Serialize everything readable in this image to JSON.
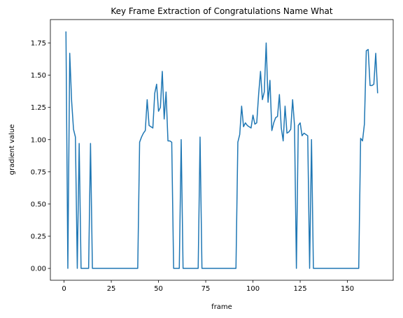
{
  "chart_data": {
    "type": "line",
    "title": "Key Frame Extraction of Congratulations Name What",
    "xlabel": "frame",
    "ylabel": "gradient value",
    "x": [
      1,
      2,
      3,
      4,
      5,
      6,
      7,
      8,
      9,
      10,
      11,
      12,
      13,
      14,
      15,
      16,
      17,
      18,
      19,
      20,
      21,
      22,
      23,
      24,
      25,
      26,
      27,
      28,
      29,
      30,
      31,
      32,
      33,
      34,
      35,
      36,
      37,
      38,
      39,
      40,
      41,
      42,
      43,
      44,
      45,
      46,
      47,
      48,
      49,
      50,
      51,
      52,
      53,
      54,
      55,
      56,
      57,
      58,
      59,
      60,
      61,
      62,
      63,
      64,
      65,
      66,
      67,
      68,
      69,
      70,
      71,
      72,
      73,
      74,
      75,
      76,
      77,
      78,
      79,
      80,
      81,
      82,
      83,
      84,
      85,
      86,
      87,
      88,
      89,
      90,
      91,
      92,
      93,
      94,
      95,
      96,
      97,
      98,
      99,
      100,
      101,
      102,
      103,
      104,
      105,
      106,
      107,
      108,
      109,
      110,
      111,
      112,
      113,
      114,
      115,
      116,
      117,
      118,
      119,
      120,
      121,
      122,
      123,
      124,
      125,
      126,
      127,
      128,
      129,
      130,
      131,
      132,
      133,
      134,
      135,
      136,
      137,
      138,
      139,
      140,
      141,
      142,
      143,
      144,
      145,
      146,
      147,
      148,
      149,
      150,
      151,
      152,
      153,
      154,
      155,
      156,
      157,
      158,
      159,
      160,
      161,
      162,
      163,
      164,
      165,
      166
    ],
    "series": [
      {
        "name": "gradient value",
        "color": "#1f77b4",
        "values": [
          1.84,
          0,
          1.67,
          1.3,
          1.08,
          1.02,
          0,
          0.97,
          0,
          0,
          0,
          0,
          0,
          0.97,
          0,
          0,
          0,
          0,
          0,
          0,
          0,
          0,
          0,
          0,
          0,
          0,
          0,
          0,
          0,
          0,
          0,
          0,
          0,
          0,
          0,
          0,
          0,
          0,
          0,
          0.98,
          1.02,
          1.05,
          1.07,
          1.31,
          1.11,
          1.1,
          1.09,
          1.36,
          1.43,
          1.22,
          1.25,
          1.53,
          1.16,
          1.37,
          0.99,
          0.99,
          0.98,
          0,
          0,
          0,
          0,
          1.0,
          0,
          0,
          0,
          0,
          0,
          0,
          0,
          0,
          0,
          1.02,
          0,
          0,
          0,
          0,
          0,
          0,
          0,
          0,
          0,
          0,
          0,
          0,
          0,
          0,
          0,
          0,
          0,
          0,
          0,
          0.98,
          1.04,
          1.26,
          1.1,
          1.13,
          1.11,
          1.1,
          1.09,
          1.19,
          1.12,
          1.13,
          1.35,
          1.53,
          1.31,
          1.37,
          1.75,
          1.29,
          1.46,
          1.07,
          1.13,
          1.17,
          1.18,
          1.35,
          1.09,
          0.99,
          1.26,
          1.05,
          1.06,
          1.08,
          1.31,
          1.11,
          0,
          1.11,
          1.13,
          1.03,
          1.05,
          1.04,
          1.03,
          0,
          1.0,
          0,
          0,
          0,
          0,
          0,
          0,
          0,
          0,
          0,
          0,
          0,
          0,
          0,
          0,
          0,
          0,
          0,
          0,
          0,
          0,
          0,
          0,
          0,
          0,
          0,
          1.01,
          0.99,
          1.12,
          1.69,
          1.7,
          1.42,
          1.42,
          1.43,
          1.67,
          1.36
        ]
      }
    ],
    "xlim": [
      -7.25,
      174.25
    ],
    "xticks": [
      0,
      25,
      50,
      75,
      100,
      125,
      150
    ],
    "ylim": [
      -0.092,
      1.932
    ],
    "yticks": [
      {
        "value": 0,
        "label": "0.00"
      },
      {
        "value": 0.25,
        "label": "0.25"
      },
      {
        "value": 0.5,
        "label": "0.50"
      },
      {
        "value": 0.75,
        "label": "0.75"
      },
      {
        "value": 1,
        "label": "1.00"
      },
      {
        "value": 1.25,
        "label": "1.25"
      },
      {
        "value": 1.5,
        "label": "1.50"
      },
      {
        "value": 1.75,
        "label": "1.75"
      }
    ],
    "grid": false
  }
}
